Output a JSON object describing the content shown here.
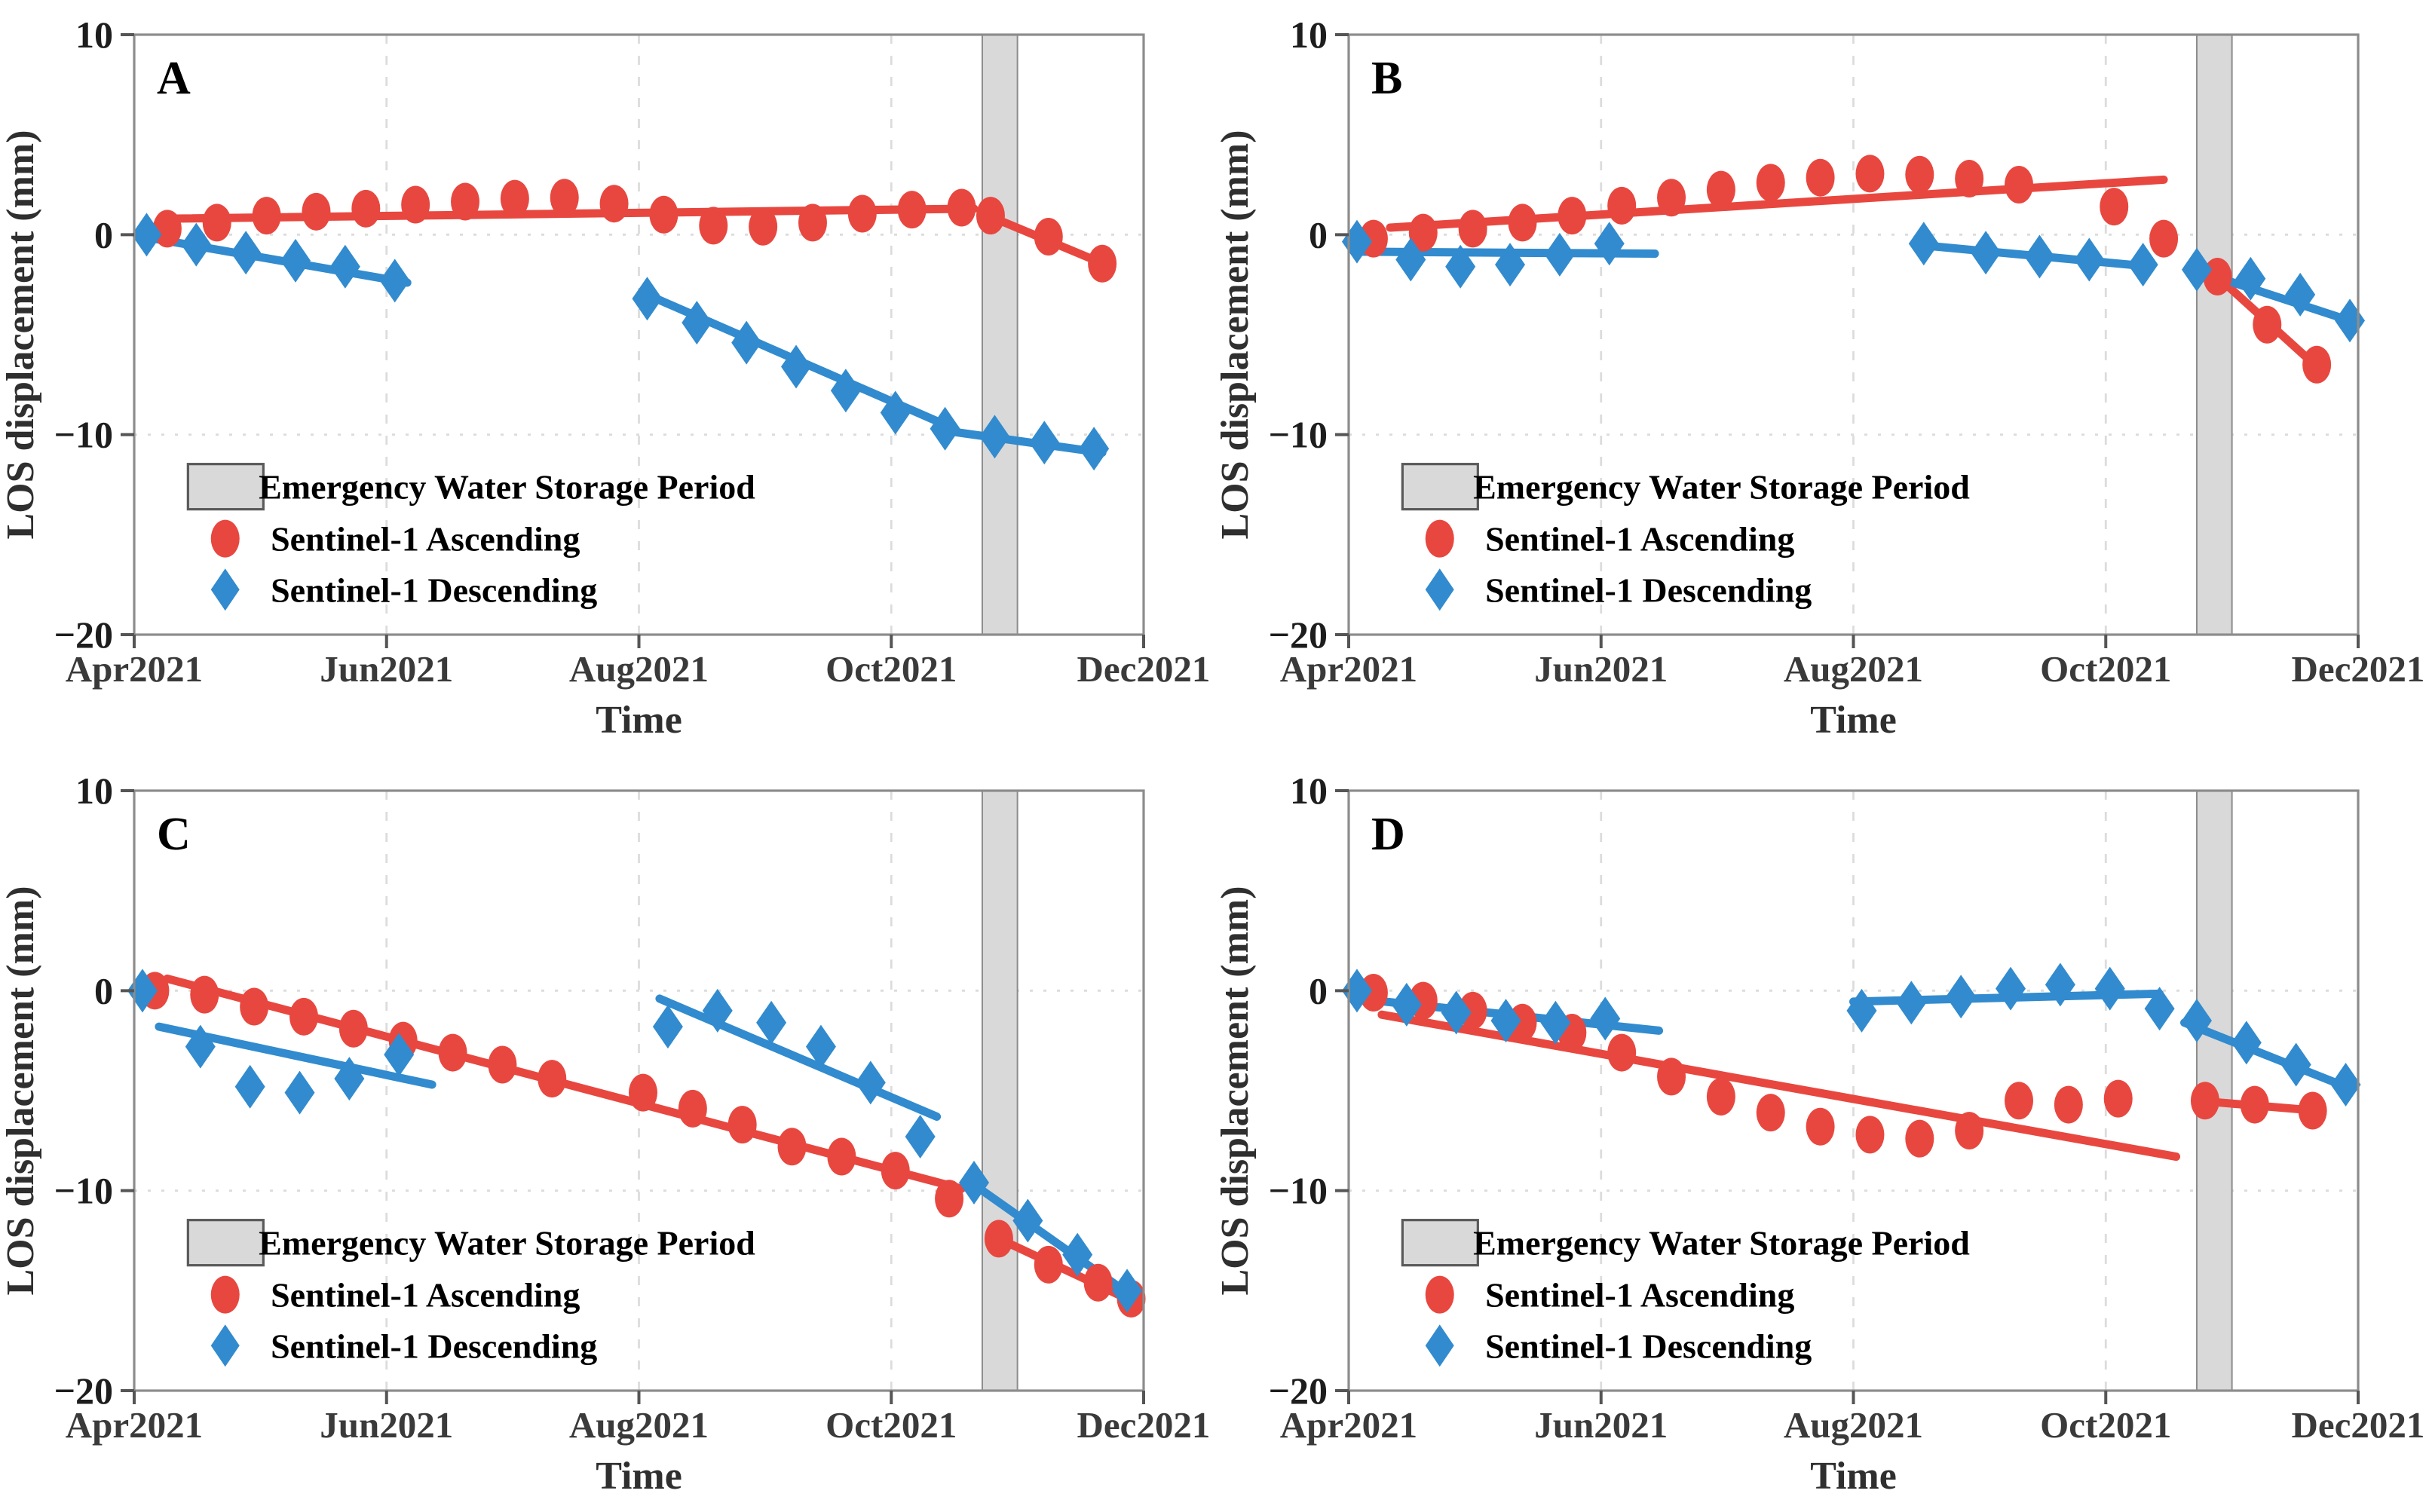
{
  "figure": {
    "ylabel": "LOS displacement (mm)",
    "xlabel": "Time",
    "x_tick_labels": [
      "Apr2021",
      "Jun2021",
      "Aug2021",
      "Oct2021",
      "Dec2021"
    ],
    "y_tick_labels": [
      "10",
      "0",
      "−10",
      "−20"
    ],
    "y_tick_values": [
      10,
      0,
      -10,
      -20
    ],
    "legend": {
      "band_label": "Emergency Water Storage Period",
      "ascending_label": "Sentinel-1 Ascending",
      "descending_label": "Sentinel-1 Descending"
    },
    "colors": {
      "ascending": "#e8473f",
      "descending": "#318bce",
      "band_fill": "#d9d9d9",
      "band_border": "#8c8c8c",
      "axis": "#8c8c8c",
      "grid": "#dcdcdc",
      "text": "#2f2f2f"
    }
  },
  "chart_data": [
    {
      "type": "scatter",
      "panel_letter": "A",
      "title": "LOS displacement time series, point A",
      "xlabel": "Time",
      "ylabel": "LOS displacement (mm)",
      "x_axis_days_range": [
        0,
        244
      ],
      "x_tick_days": [
        0,
        61,
        122,
        183,
        244
      ],
      "x_tick_labels": [
        "Apr2021",
        "Jun2021",
        "Aug2021",
        "Oct2021",
        "Dec2021"
      ],
      "ylim": [
        -20,
        10
      ],
      "grid_x_days": [
        61,
        122,
        183
      ],
      "grid_y_values": [
        0,
        -10
      ],
      "storage_band_days": [
        205,
        213.5
      ],
      "series": [
        {
          "name": "Sentinel-1 Ascending",
          "marker": "circle",
          "points": [
            [
              8,
              0.3
            ],
            [
              20,
              0.6
            ],
            [
              32,
              0.95
            ],
            [
              44,
              1.15
            ],
            [
              56,
              1.3
            ],
            [
              68,
              1.5
            ],
            [
              80,
              1.65
            ],
            [
              92,
              1.8
            ],
            [
              104,
              1.85
            ],
            [
              116,
              1.55
            ],
            [
              128,
              1.0
            ],
            [
              140,
              0.45
            ],
            [
              152,
              0.4
            ],
            [
              164,
              0.6
            ],
            [
              176,
              1.05
            ],
            [
              188,
              1.25
            ],
            [
              200,
              1.35
            ],
            [
              207,
              0.95
            ],
            [
              221,
              -0.1
            ],
            [
              234,
              -1.45
            ]
          ],
          "trend_segments": [
            [
              8,
              0.8,
              203,
              1.3
            ],
            [
              207,
              0.9,
              236,
              -1.6
            ]
          ]
        },
        {
          "name": "Sentinel-1 Descending",
          "marker": "diamond",
          "points": [
            [
              3,
              0.0
            ],
            [
              15,
              -0.5
            ],
            [
              27,
              -0.9
            ],
            [
              39,
              -1.3
            ],
            [
              51,
              -1.6
            ],
            [
              63,
              -2.3
            ],
            [
              124,
              -3.2
            ],
            [
              136,
              -4.4
            ],
            [
              148,
              -5.4
            ],
            [
              160,
              -6.6
            ],
            [
              172,
              -7.8
            ],
            [
              184,
              -8.9
            ],
            [
              196,
              -9.7
            ],
            [
              208,
              -10.1
            ],
            [
              220,
              -10.4
            ],
            [
              232,
              -10.7
            ]
          ],
          "trend_segments": [
            [
              2,
              -0.1,
              66,
              -2.4
            ],
            [
              124,
              -3.0,
              196,
              -9.5
            ],
            [
              196,
              -9.8,
              234,
              -10.9
            ]
          ]
        }
      ]
    },
    {
      "type": "scatter",
      "panel_letter": "B",
      "title": "LOS displacement time series, point B",
      "xlabel": "Time",
      "ylabel": "LOS displacement (mm)",
      "x_axis_days_range": [
        0,
        244
      ],
      "x_tick_days": [
        0,
        61,
        122,
        183,
        244
      ],
      "x_tick_labels": [
        "Apr2021",
        "Jun2021",
        "Aug2021",
        "Oct2021",
        "Dec2021"
      ],
      "ylim": [
        -20,
        10
      ],
      "grid_x_days": [
        61,
        122,
        183
      ],
      "grid_y_values": [
        0,
        -10
      ],
      "storage_band_days": [
        205,
        213.5
      ],
      "series": [
        {
          "name": "Sentinel-1 Ascending",
          "marker": "circle",
          "points": [
            [
              6,
              -0.2
            ],
            [
              18,
              0.1
            ],
            [
              30,
              0.3
            ],
            [
              42,
              0.6
            ],
            [
              54,
              0.95
            ],
            [
              66,
              1.45
            ],
            [
              78,
              1.85
            ],
            [
              90,
              2.25
            ],
            [
              102,
              2.6
            ],
            [
              114,
              2.85
            ],
            [
              126,
              3.05
            ],
            [
              138,
              3.0
            ],
            [
              150,
              2.8
            ],
            [
              162,
              2.5
            ],
            [
              185,
              1.4
            ],
            [
              197,
              -0.2
            ],
            [
              210,
              -2.1
            ],
            [
              222,
              -4.5
            ],
            [
              234,
              -6.5
            ]
          ],
          "trend_segments": [
            [
              10,
              0.35,
              197,
              2.75
            ],
            [
              210,
              -2.1,
              234,
              -6.6
            ]
          ]
        },
        {
          "name": "Sentinel-1 Descending",
          "marker": "diamond",
          "points": [
            [
              2,
              -0.35
            ],
            [
              15,
              -1.25
            ],
            [
              27,
              -1.6
            ],
            [
              39,
              -1.5
            ],
            [
              51,
              -1.0
            ],
            [
              63,
              -0.45
            ],
            [
              139,
              -0.45
            ],
            [
              154,
              -0.9
            ],
            [
              167,
              -1.1
            ],
            [
              179,
              -1.25
            ],
            [
              192,
              -1.5
            ],
            [
              205,
              -1.75
            ],
            [
              218,
              -2.2
            ],
            [
              230,
              -3.0
            ],
            [
              242,
              -4.3
            ]
          ],
          "trend_segments": [
            [
              2,
              -0.85,
              74,
              -0.95
            ],
            [
              137,
              -0.5,
              194,
              -1.6
            ],
            [
              205,
              -1.8,
              242,
              -4.3
            ]
          ]
        }
      ]
    },
    {
      "type": "scatter",
      "panel_letter": "C",
      "title": "LOS displacement time series, point C",
      "xlabel": "Time",
      "ylabel": "LOS displacement (mm)",
      "x_axis_days_range": [
        0,
        244
      ],
      "x_tick_days": [
        0,
        61,
        122,
        183,
        244
      ],
      "x_tick_labels": [
        "Apr2021",
        "Jun2021",
        "Aug2021",
        "Oct2021",
        "Dec2021"
      ],
      "ylim": [
        -20,
        10
      ],
      "grid_x_days": [
        61,
        122,
        183
      ],
      "grid_y_values": [
        0,
        -10
      ],
      "storage_band_days": [
        205,
        213.5
      ],
      "series": [
        {
          "name": "Sentinel-1 Ascending",
          "marker": "circle",
          "points": [
            [
              5,
              0.0
            ],
            [
              17,
              -0.2
            ],
            [
              29,
              -0.8
            ],
            [
              41,
              -1.3
            ],
            [
              53,
              -1.9
            ],
            [
              65,
              -2.5
            ],
            [
              77,
              -3.1
            ],
            [
              89,
              -3.7
            ],
            [
              101,
              -4.4
            ],
            [
              123,
              -5.1
            ],
            [
              135,
              -5.9
            ],
            [
              147,
              -6.7
            ],
            [
              159,
              -7.8
            ],
            [
              171,
              -8.3
            ],
            [
              184,
              -9.0
            ],
            [
              197,
              -10.4
            ],
            [
              209,
              -12.4
            ],
            [
              221,
              -13.7
            ],
            [
              233,
              -14.6
            ],
            [
              241,
              -15.4
            ]
          ],
          "trend_segments": [
            [
              8,
              0.6,
              200,
              -9.9
            ],
            [
              209,
              -12.4,
              241,
              -15.5
            ]
          ]
        },
        {
          "name": "Sentinel-1 Descending",
          "marker": "diamond",
          "points": [
            [
              2,
              0.0
            ],
            [
              16,
              -2.8
            ],
            [
              28,
              -4.8
            ],
            [
              40,
              -5.1
            ],
            [
              52,
              -4.4
            ],
            [
              64,
              -3.2
            ],
            [
              129,
              -1.8
            ],
            [
              141,
              -1.0
            ],
            [
              154,
              -1.6
            ],
            [
              166,
              -2.8
            ],
            [
              178,
              -4.6
            ],
            [
              190,
              -7.3
            ],
            [
              203,
              -9.6
            ],
            [
              216,
              -11.5
            ],
            [
              228,
              -13.2
            ],
            [
              240,
              -15.0
            ]
          ],
          "trend_segments": [
            [
              6,
              -1.8,
              72,
              -4.7
            ],
            [
              127,
              -0.4,
              194,
              -6.3
            ],
            [
              203,
              -9.7,
              240,
              -15.1
            ]
          ]
        }
      ]
    },
    {
      "type": "scatter",
      "panel_letter": "D",
      "title": "LOS displacement time series, point D",
      "xlabel": "Time",
      "ylabel": "LOS displacement (mm)",
      "x_axis_days_range": [
        0,
        244
      ],
      "x_tick_days": [
        0,
        61,
        122,
        183,
        244
      ],
      "x_tick_labels": [
        "Apr2021",
        "Jun2021",
        "Aug2021",
        "Oct2021",
        "Dec2021"
      ],
      "ylim": [
        -20,
        10
      ],
      "grid_x_days": [
        61,
        122,
        183
      ],
      "grid_y_values": [
        0,
        -10
      ],
      "storage_band_days": [
        205,
        213.5
      ],
      "series": [
        {
          "name": "Sentinel-1 Ascending",
          "marker": "circle",
          "points": [
            [
              6,
              -0.1
            ],
            [
              18,
              -0.5
            ],
            [
              30,
              -1.0
            ],
            [
              42,
              -1.6
            ],
            [
              54,
              -2.1
            ],
            [
              66,
              -3.1
            ],
            [
              78,
              -4.3
            ],
            [
              90,
              -5.3
            ],
            [
              102,
              -6.1
            ],
            [
              114,
              -6.8
            ],
            [
              126,
              -7.2
            ],
            [
              138,
              -7.4
            ],
            [
              150,
              -7.0
            ],
            [
              162,
              -5.5
            ],
            [
              174,
              -5.7
            ],
            [
              186,
              -5.4
            ],
            [
              207,
              -5.5
            ],
            [
              219,
              -5.7
            ],
            [
              233,
              -6.0
            ]
          ],
          "trend_segments": [
            [
              8,
              -1.2,
              200,
              -8.3
            ],
            [
              205,
              -5.5,
              234,
              -6.0
            ]
          ]
        },
        {
          "name": "Sentinel-1 Descending",
          "marker": "diamond",
          "points": [
            [
              2,
              0.0
            ],
            [
              14,
              -0.7
            ],
            [
              26,
              -1.1
            ],
            [
              38,
              -1.5
            ],
            [
              50,
              -1.6
            ],
            [
              62,
              -1.4
            ],
            [
              124,
              -1.0
            ],
            [
              136,
              -0.6
            ],
            [
              148,
              -0.3
            ],
            [
              160,
              0.1
            ],
            [
              172,
              0.3
            ],
            [
              184,
              0.1
            ],
            [
              196,
              -0.9
            ],
            [
              205,
              -1.5
            ],
            [
              217,
              -2.6
            ],
            [
              229,
              -3.7
            ],
            [
              241,
              -4.7
            ]
          ],
          "trend_segments": [
            [
              2,
              -0.4,
              75,
              -2.0
            ],
            [
              122,
              -0.55,
              196,
              -0.15
            ],
            [
              202,
              -1.6,
              241,
              -4.8
            ]
          ]
        }
      ]
    }
  ]
}
